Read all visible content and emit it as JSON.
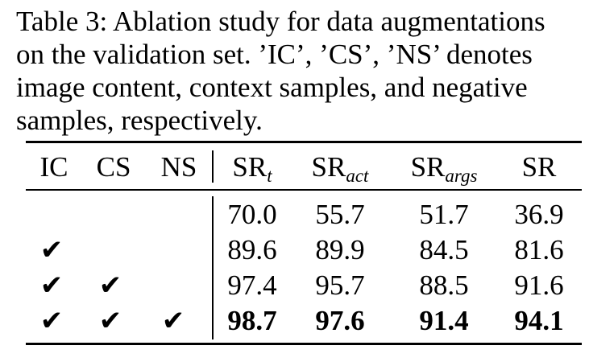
{
  "caption": {
    "lines": [
      "Table 3: Ablation study for data augmentations",
      "on the validation set. ’IC’, ’CS’, ’NS’ denotes",
      "image content, context samples, and negative",
      "samples, respectively."
    ]
  },
  "table": {
    "headers": {
      "ic": "IC",
      "cs": "CS",
      "ns": "NS",
      "sr_t": {
        "base": "SR",
        "sub": "t"
      },
      "sr_act": {
        "base": "SR",
        "sub": "act"
      },
      "sr_args": {
        "base": "SR",
        "sub": "args"
      },
      "sr": "SR"
    },
    "check_glyph": "✔",
    "rows": [
      {
        "ic": false,
        "cs": false,
        "ns": false,
        "values": [
          "70.0",
          "55.7",
          "51.7",
          "36.9"
        ],
        "bold": false
      },
      {
        "ic": true,
        "cs": false,
        "ns": false,
        "values": [
          "89.6",
          "89.9",
          "84.5",
          "81.6"
        ],
        "bold": false
      },
      {
        "ic": true,
        "cs": true,
        "ns": false,
        "values": [
          "97.4",
          "95.7",
          "88.5",
          "91.6"
        ],
        "bold": false
      },
      {
        "ic": true,
        "cs": true,
        "ns": true,
        "values": [
          "98.7",
          "97.6",
          "91.4",
          "94.1"
        ],
        "bold": true
      }
    ]
  }
}
